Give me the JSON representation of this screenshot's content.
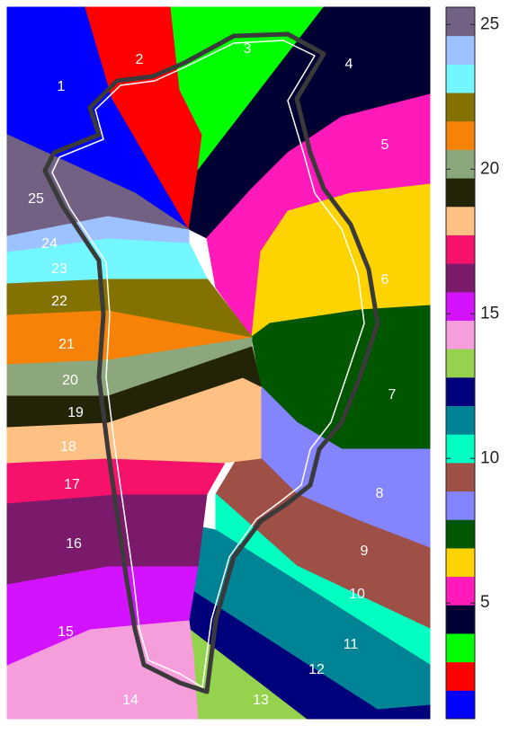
{
  "regions": [
    {
      "label": "1",
      "color": "#0000ff"
    },
    {
      "label": "2",
      "color": "#ff0000"
    },
    {
      "label": "3",
      "color": "#00ff00"
    },
    {
      "label": "4",
      "color": "#000033"
    },
    {
      "label": "5",
      "color": "#ff1ab9"
    },
    {
      "label": "6",
      "color": "#ffd300"
    },
    {
      "label": "7",
      "color": "#005700"
    },
    {
      "label": "8",
      "color": "#8484ff"
    },
    {
      "label": "9",
      "color": "#9e4f46"
    },
    {
      "label": "10",
      "color": "#00ffc1"
    },
    {
      "label": "11",
      "color": "#008395"
    },
    {
      "label": "12",
      "color": "#00007b"
    },
    {
      "label": "13",
      "color": "#95d34f"
    },
    {
      "label": "14",
      "color": "#f69edc"
    },
    {
      "label": "15",
      "color": "#d312ff"
    },
    {
      "label": "16",
      "color": "#7b1a6a"
    },
    {
      "label": "17",
      "color": "#f6126a"
    },
    {
      "label": "18",
      "color": "#ffc183"
    },
    {
      "label": "19",
      "color": "#232308"
    },
    {
      "label": "20",
      "color": "#8ca77b"
    },
    {
      "label": "21",
      "color": "#f68308"
    },
    {
      "label": "22",
      "color": "#837200"
    },
    {
      "label": "23",
      "color": "#72f6ff"
    },
    {
      "label": "24",
      "color": "#9ec1ff"
    },
    {
      "label": "25",
      "color": "#726183"
    }
  ],
  "colorbar": {
    "clim": [
      1,
      25.6
    ],
    "ticks": [
      5,
      10,
      15,
      20,
      25
    ]
  }
}
